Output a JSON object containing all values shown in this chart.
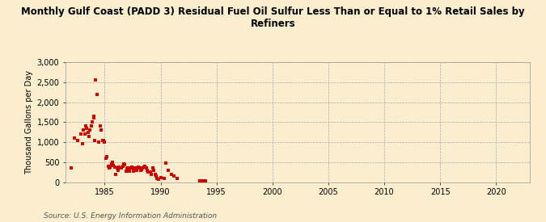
{
  "title": "Monthly Gulf Coast (PADD 3) Residual Fuel Oil Sulfur Less Than or Equal to 1% Retail Sales by\nRefiners",
  "ylabel": "Thousand Gallons per Day",
  "source": "Source: U.S. Energy Information Administration",
  "background_color": "#faeece",
  "dot_color": "#cc0000",
  "xlim": [
    1981.5,
    2023
  ],
  "ylim": [
    0,
    3000
  ],
  "yticks": [
    0,
    500,
    1000,
    1500,
    2000,
    2500,
    3000
  ],
  "xticks": [
    1985,
    1990,
    1995,
    2000,
    2005,
    2010,
    2015,
    2020
  ],
  "data": [
    [
      1982.0,
      350
    ],
    [
      1982.3,
      1100
    ],
    [
      1982.6,
      1050
    ],
    [
      1982.9,
      1200
    ],
    [
      1983.0,
      950
    ],
    [
      1983.1,
      1300
    ],
    [
      1983.2,
      1200
    ],
    [
      1983.3,
      1400
    ],
    [
      1983.4,
      1350
    ],
    [
      1983.5,
      1250
    ],
    [
      1983.6,
      1150
    ],
    [
      1983.7,
      1300
    ],
    [
      1983.8,
      1400
    ],
    [
      1983.9,
      1500
    ],
    [
      1984.0,
      1600
    ],
    [
      1984.05,
      1650
    ],
    [
      1984.1,
      1050
    ],
    [
      1984.2,
      2550
    ],
    [
      1984.3,
      2200
    ],
    [
      1984.5,
      1000
    ],
    [
      1984.6,
      1400
    ],
    [
      1984.7,
      1300
    ],
    [
      1984.8,
      1050
    ],
    [
      1984.9,
      1050
    ],
    [
      1985.0,
      1000
    ],
    [
      1985.1,
      600
    ],
    [
      1985.2,
      640
    ],
    [
      1985.3,
      400
    ],
    [
      1985.4,
      350
    ],
    [
      1985.5,
      380
    ],
    [
      1985.6,
      450
    ],
    [
      1985.7,
      500
    ],
    [
      1985.8,
      420
    ],
    [
      1985.9,
      380
    ],
    [
      1986.0,
      200
    ],
    [
      1986.1,
      350
    ],
    [
      1986.2,
      300
    ],
    [
      1986.3,
      380
    ],
    [
      1986.4,
      350
    ],
    [
      1986.5,
      350
    ],
    [
      1986.6,
      400
    ],
    [
      1986.7,
      450
    ],
    [
      1986.8,
      430
    ],
    [
      1986.9,
      280
    ],
    [
      1987.0,
      330
    ],
    [
      1987.1,
      350
    ],
    [
      1987.2,
      280
    ],
    [
      1987.3,
      350
    ],
    [
      1987.4,
      380
    ],
    [
      1987.5,
      350
    ],
    [
      1987.6,
      280
    ],
    [
      1987.7,
      350
    ],
    [
      1987.8,
      350
    ],
    [
      1987.9,
      300
    ],
    [
      1988.0,
      380
    ],
    [
      1988.1,
      350
    ],
    [
      1988.2,
      300
    ],
    [
      1988.3,
      320
    ],
    [
      1988.4,
      350
    ],
    [
      1988.5,
      380
    ],
    [
      1988.6,
      400
    ],
    [
      1988.7,
      350
    ],
    [
      1988.8,
      300
    ],
    [
      1988.9,
      250
    ],
    [
      1989.0,
      250
    ],
    [
      1989.1,
      250
    ],
    [
      1989.2,
      200
    ],
    [
      1989.3,
      350
    ],
    [
      1989.4,
      300
    ],
    [
      1989.5,
      200
    ],
    [
      1989.6,
      150
    ],
    [
      1989.7,
      100
    ],
    [
      1989.8,
      80
    ],
    [
      1990.0,
      120
    ],
    [
      1990.3,
      100
    ],
    [
      1990.5,
      480
    ],
    [
      1990.7,
      300
    ],
    [
      1991.0,
      200
    ],
    [
      1991.2,
      150
    ],
    [
      1991.5,
      100
    ],
    [
      1993.5,
      30
    ],
    [
      1993.6,
      28
    ],
    [
      1993.7,
      25
    ],
    [
      1993.8,
      30
    ],
    [
      1993.9,
      28
    ],
    [
      1994.0,
      25
    ]
  ]
}
